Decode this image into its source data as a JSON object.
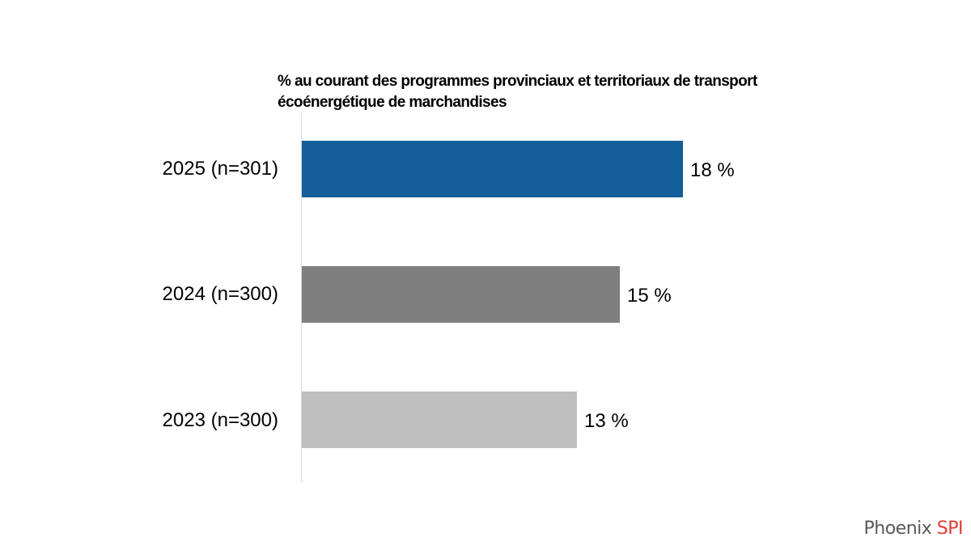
{
  "chart_data": {
    "type": "bar",
    "orientation": "horizontal",
    "title": "% au courant des programmes provinciaux et territoriaux de transport écoénergétique de marchandises",
    "categories": [
      "2025 (n=301)",
      "2024 (n=300)",
      "2023 (n=300)"
    ],
    "values": [
      18,
      15,
      13
    ],
    "value_labels": [
      "18 %",
      "15 %",
      "13 %"
    ],
    "colors": [
      "#135f99",
      "#7f7f7f",
      "#bfbfbf"
    ],
    "xlabel": "",
    "ylabel": "",
    "grid": false,
    "legend": null
  },
  "title_line1": "% au courant des programmes provinciaux et territoriaux de transport",
  "title_line2": "écoénergétique de marchandises",
  "rows": [
    {
      "label": "2025 (n=301)",
      "value": 18,
      "value_label": "18 %",
      "color": "#135f99"
    },
    {
      "label": "2024 (n=300)",
      "value": 15,
      "value_label": "15 %",
      "color": "#7f7f7f"
    },
    {
      "label": "2023 (n=300)",
      "value": 13,
      "value_label": "13 %",
      "color": "#bfbfbf"
    }
  ],
  "brand": {
    "name": "Phoenix",
    "accent": "SPI",
    "accent_color": "#e03c31"
  }
}
